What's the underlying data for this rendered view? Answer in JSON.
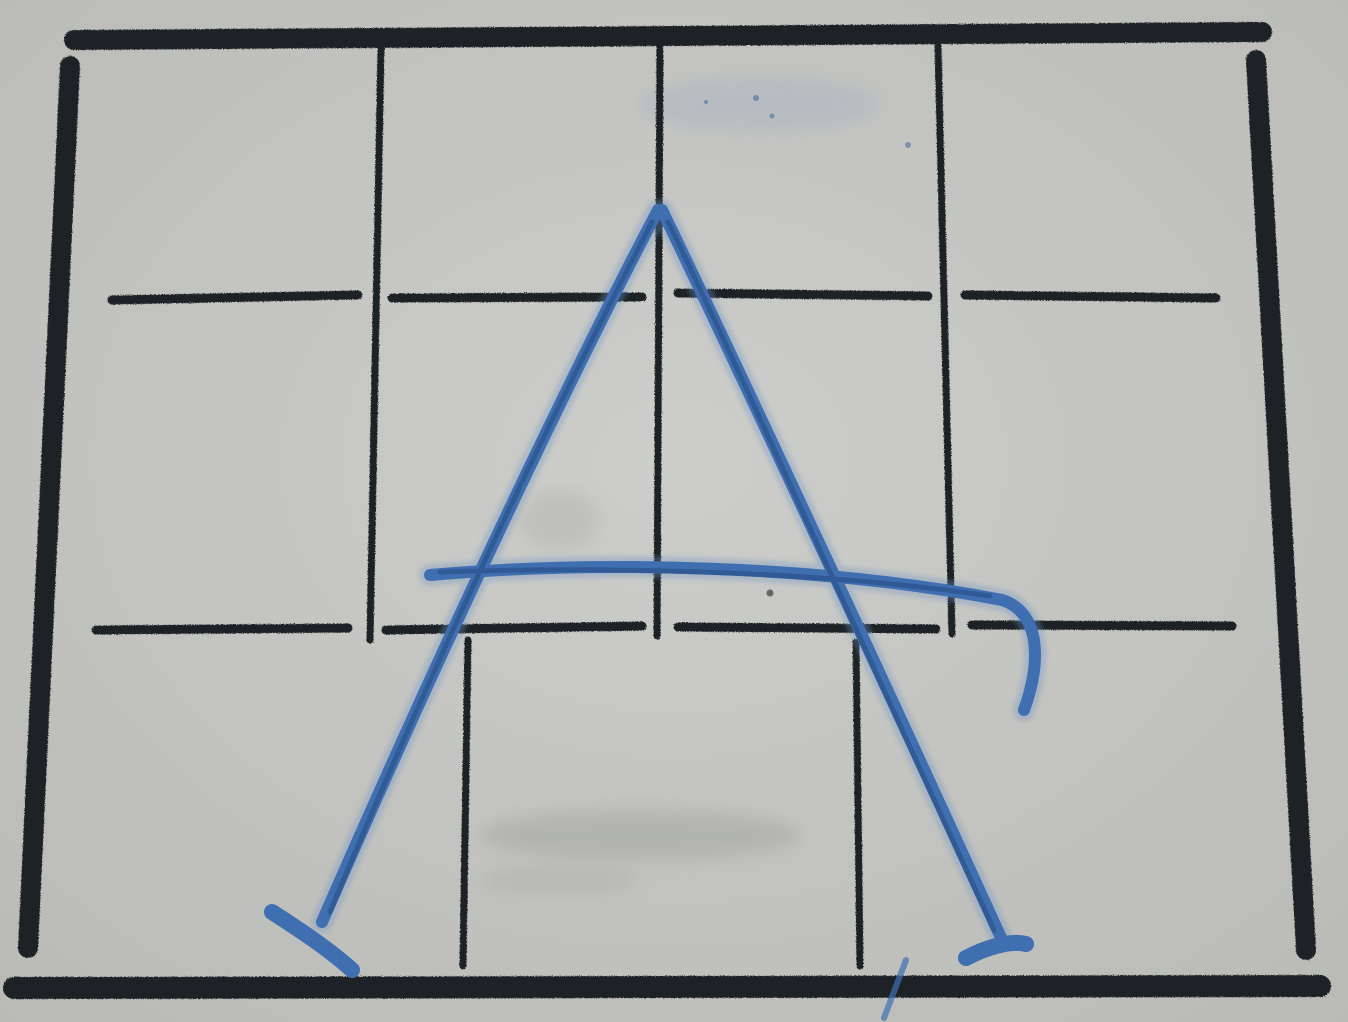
{
  "scene": {
    "colors": {
      "paper": "#c2c3bf",
      "paper_light": "#cacbc7",
      "grid_ink": "#1f2226",
      "pen_ink": "#3f6fb0",
      "pen_ink_dark": "#2d568f",
      "smudge": "#a9aba7"
    },
    "grid": {
      "columns": 4,
      "rows": 3
    },
    "letter": "A"
  }
}
